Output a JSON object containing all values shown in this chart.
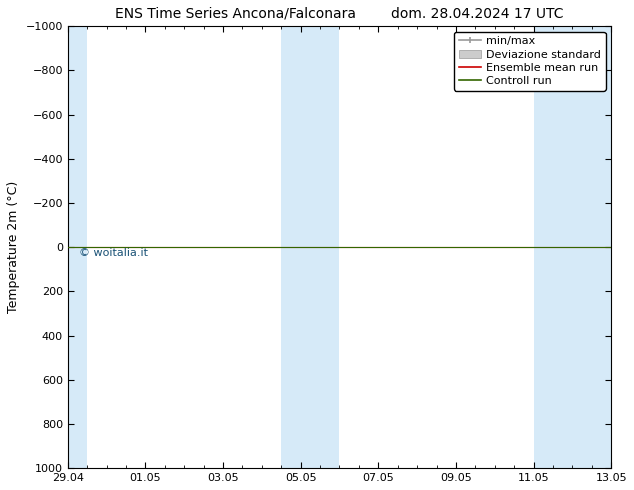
{
  "title_left": "ENS Time Series Ancona/Falconara",
  "title_right": "dom. 28.04.2024 17 UTC",
  "ylabel": "Temperature 2m (°C)",
  "ylim_top": -1000,
  "ylim_bottom": 1000,
  "yticks": [
    -1000,
    -800,
    -600,
    -400,
    -200,
    0,
    200,
    400,
    600,
    800,
    1000
  ],
  "xlim_start": 0,
  "xlim_end": 14,
  "xtick_labels": [
    "29.04",
    "01.05",
    "03.05",
    "05.05",
    "07.05",
    "09.05",
    "11.05",
    "13.05"
  ],
  "xtick_positions": [
    0,
    2,
    4,
    6,
    8,
    10,
    12,
    14
  ],
  "shaded_bands": [
    {
      "xmin": 0.0,
      "xmax": 0.5
    },
    {
      "xmin": 5.5,
      "xmax": 7.0
    },
    {
      "xmin": 12.0,
      "xmax": 14.0
    }
  ],
  "shaded_color": "#d6eaf8",
  "line_ensemble_color": "#cc0000",
  "line_control_color": "#336600",
  "watermark_text": "© woitalia.it",
  "watermark_color": "#1a5276",
  "legend_minmax_color": "#999999",
  "legend_deviazione_color": "#cccccc",
  "background_color": "#ffffff",
  "font_size_title": 10,
  "font_size_labels": 9,
  "font_size_ticks": 8,
  "font_size_legend": 8,
  "font_size_watermark": 8
}
